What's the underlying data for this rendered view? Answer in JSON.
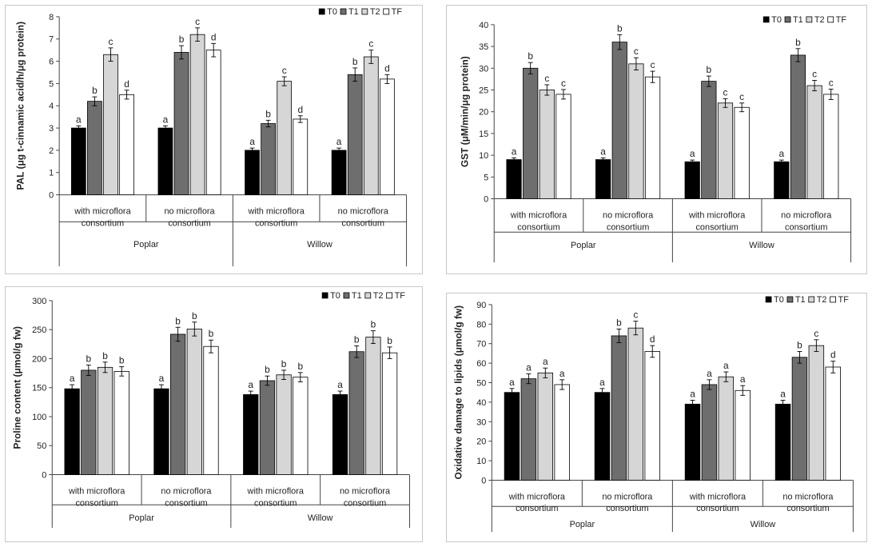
{
  "colors": {
    "T0": "#000000",
    "T1": "#6e6e6e",
    "T2": "#d6d6d6",
    "TF": "#ffffff",
    "axis": "#444444"
  },
  "chart_data": [
    {
      "type": "bar",
      "ylabel": "PAL (μg t-cinnamic acid/h/μg protein)",
      "ylim": [
        0,
        8
      ],
      "yticks": [
        0,
        1,
        2,
        3,
        4,
        5,
        6,
        7,
        8
      ],
      "legend": [
        "T0",
        "T1",
        "T2",
        "TF"
      ],
      "legend_position": "top-right",
      "groups": [
        "Poplar",
        "Willow"
      ],
      "categories": [
        "with microflora consortium",
        "no microflora consortium",
        "with microflora consortium",
        "no microflora consortium"
      ],
      "category_lines": [
        [
          "with microflora",
          "consortium"
        ],
        [
          "no microflora",
          "consortium"
        ],
        [
          "with microflora",
          "consortium"
        ],
        [
          "no microflora",
          "consortium"
        ]
      ],
      "series": [
        {
          "name": "T0",
          "values": [
            3.0,
            3.0,
            2.0,
            2.0
          ],
          "errors": [
            0.1,
            0.1,
            0.1,
            0.1
          ],
          "labels": [
            "a",
            "a",
            "a",
            "a"
          ]
        },
        {
          "name": "T1",
          "values": [
            4.2,
            6.4,
            3.2,
            5.4
          ],
          "errors": [
            0.2,
            0.3,
            0.15,
            0.3
          ],
          "labels": [
            "b",
            "b",
            "b",
            "b"
          ]
        },
        {
          "name": "T2",
          "values": [
            6.3,
            7.2,
            5.1,
            6.2
          ],
          "errors": [
            0.3,
            0.3,
            0.2,
            0.3
          ],
          "labels": [
            "c",
            "c",
            "c",
            "c"
          ]
        },
        {
          "name": "TF",
          "values": [
            4.5,
            6.5,
            3.4,
            5.2
          ],
          "errors": [
            0.2,
            0.3,
            0.15,
            0.2
          ],
          "labels": [
            "d",
            "d",
            "d",
            "d"
          ]
        }
      ]
    },
    {
      "type": "bar",
      "ylabel": "GST (μM/min/μg protein)",
      "ylim": [
        0,
        40
      ],
      "yticks": [
        0,
        5,
        10,
        15,
        20,
        25,
        30,
        35,
        40
      ],
      "legend": [
        "T0",
        "T1",
        "T2",
        "TF"
      ],
      "legend_position": "top-right",
      "groups": [
        "Poplar",
        "Willow"
      ],
      "categories": [
        "with microflora consortium",
        "no microflora consortium",
        "with microflora consortium",
        "no microflora consortium"
      ],
      "category_lines": [
        [
          "with microflora",
          "consortium"
        ],
        [
          "no microflora",
          "consortium"
        ],
        [
          "with microflora",
          "consortium"
        ],
        [
          "no microflora",
          "consortium"
        ]
      ],
      "series": [
        {
          "name": "T0",
          "values": [
            9,
            9,
            8.5,
            8.5
          ],
          "errors": [
            0.4,
            0.4,
            0.4,
            0.4
          ],
          "labels": [
            "a",
            "a",
            "a",
            "a"
          ]
        },
        {
          "name": "T1",
          "values": [
            30,
            36,
            27,
            33
          ],
          "errors": [
            1.3,
            1.7,
            1.2,
            1.5
          ],
          "labels": [
            "b",
            "b",
            "b",
            "b"
          ]
        },
        {
          "name": "T2",
          "values": [
            25,
            31,
            22,
            26
          ],
          "errors": [
            1.2,
            1.4,
            1.0,
            1.2
          ],
          "labels": [
            "c",
            "c",
            "c",
            "c"
          ]
        },
        {
          "name": "TF",
          "values": [
            24,
            28,
            21,
            24
          ],
          "errors": [
            1.1,
            1.3,
            1.0,
            1.2
          ],
          "labels": [
            "c",
            "c",
            "c",
            "c"
          ]
        }
      ]
    },
    {
      "type": "bar",
      "ylabel": "Proline content (μmol/g fw)",
      "ylim": [
        0,
        300
      ],
      "yticks": [
        0,
        50,
        100,
        150,
        200,
        250,
        300
      ],
      "legend": [
        "T0",
        "T1",
        "T2",
        "TF"
      ],
      "legend_position": "top-right",
      "groups": [
        "Poplar",
        "Willow"
      ],
      "categories": [
        "with microflora consortium",
        "no microflora consortium",
        "with microflora consortium",
        "no microflora consortium"
      ],
      "category_lines": [
        [
          "with microflora",
          "consortium"
        ],
        [
          "no microflora",
          "consortium"
        ],
        [
          "with microflora",
          "consortium"
        ],
        [
          "no microflora",
          "consortium"
        ]
      ],
      "series": [
        {
          "name": "T0",
          "values": [
            148,
            148,
            138,
            138
          ],
          "errors": [
            7,
            7,
            6,
            6
          ],
          "labels": [
            "a",
            "a",
            "a",
            "a"
          ]
        },
        {
          "name": "T1",
          "values": [
            180,
            242,
            162,
            212
          ],
          "errors": [
            9,
            12,
            8,
            10
          ],
          "labels": [
            "b",
            "b",
            "b",
            "b"
          ]
        },
        {
          "name": "T2",
          "values": [
            185,
            251,
            172,
            237
          ],
          "errors": [
            9,
            12,
            8,
            11
          ],
          "labels": [
            "b",
            "b",
            "b",
            "b"
          ]
        },
        {
          "name": "TF",
          "values": [
            178,
            221,
            168,
            210
          ],
          "errors": [
            8,
            11,
            8,
            10
          ],
          "labels": [
            "b",
            "b",
            "b",
            "b"
          ]
        }
      ]
    },
    {
      "type": "bar",
      "ylabel": "Oxidative damage to lipids (μmol/g fw)",
      "ylim": [
        0,
        90
      ],
      "yticks": [
        0,
        10,
        20,
        30,
        40,
        50,
        60,
        70,
        80,
        90
      ],
      "legend": [
        "T0",
        "T1",
        "T2",
        "TF"
      ],
      "legend_position": "top-right",
      "groups": [
        "Poplar",
        "Willow"
      ],
      "categories": [
        "with microflora consortium",
        "no microflora consortium",
        "with microflora consortium",
        "no microflora consortium"
      ],
      "category_lines": [
        [
          "with microflora",
          "consortium"
        ],
        [
          "no microflora",
          "consortium"
        ],
        [
          "with microflora",
          "consortium"
        ],
        [
          "no microflora",
          "consortium"
        ]
      ],
      "series": [
        {
          "name": "T0",
          "values": [
            45,
            45,
            39,
            39
          ],
          "errors": [
            2,
            2,
            2,
            2
          ],
          "labels": [
            "a",
            "a",
            "a",
            "a"
          ]
        },
        {
          "name": "T1",
          "values": [
            52,
            74,
            49,
            63
          ],
          "errors": [
            2.5,
            3.5,
            2.5,
            3
          ],
          "labels": [
            "a",
            "b",
            "a",
            "b"
          ]
        },
        {
          "name": "T2",
          "values": [
            55,
            78,
            53,
            69
          ],
          "errors": [
            2.5,
            3.5,
            2.5,
            3
          ],
          "labels": [
            "a",
            "c",
            "a",
            "c"
          ]
        },
        {
          "name": "TF",
          "values": [
            49,
            66,
            46,
            58
          ],
          "errors": [
            2.5,
            3,
            2.5,
            3
          ],
          "labels": [
            "a",
            "d",
            "a",
            "d"
          ]
        }
      ]
    }
  ]
}
